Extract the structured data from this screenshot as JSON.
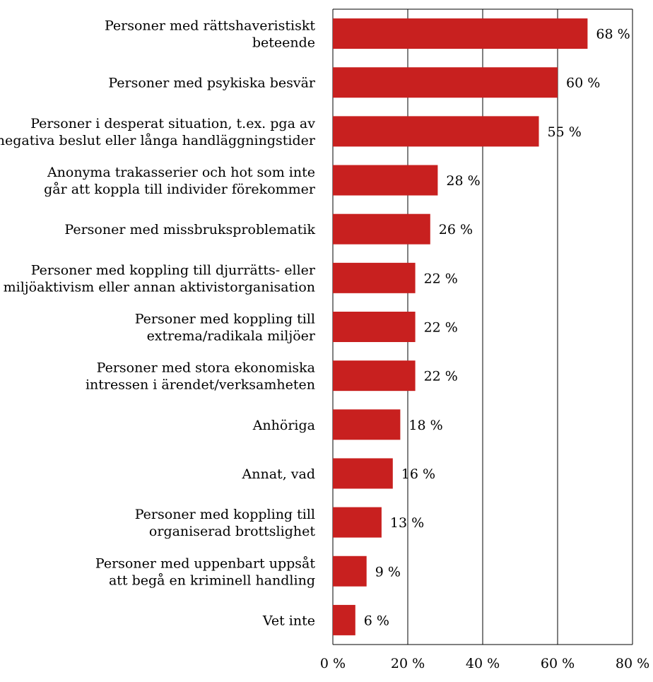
{
  "chart_data": {
    "type": "bar",
    "orientation": "horizontal",
    "categories": [
      [
        "Personer med rättshaveristiskt",
        "beteende"
      ],
      [
        "Personer med psykiska besvär"
      ],
      [
        "Personer i desperat situation, t.ex. pga av",
        "negativa beslut eller långa handläggningstider"
      ],
      [
        "Anonyma trakasserier och hot som inte",
        "går att koppla till individer förekommer"
      ],
      [
        "Personer med missbruksproblematik"
      ],
      [
        "Personer med koppling till djurrätts- eller",
        "miljöaktivism eller annan aktivistorganisation"
      ],
      [
        "Personer med koppling till",
        "extrema/radikala miljöer"
      ],
      [
        "Personer med stora ekonomiska",
        "intressen i ärendet/verksamheten"
      ],
      [
        "Anhöriga"
      ],
      [
        "Annat, vad"
      ],
      [
        "Personer med koppling till",
        "organiserad brottslighet"
      ],
      [
        "Personer med uppenbart uppsåt",
        "att begå en kriminell handling"
      ],
      [
        "Vet inte"
      ]
    ],
    "values": [
      68,
      60,
      55,
      28,
      26,
      22,
      22,
      22,
      18,
      16,
      13,
      9,
      6
    ],
    "value_labels": [
      "68 %",
      "60 %",
      "55 %",
      "28 %",
      "26 %",
      "22 %",
      "22 %",
      "22 %",
      "18 %",
      "16 %",
      "13 %",
      "9 %",
      "6 %"
    ],
    "xlim": [
      0,
      80
    ],
    "xticks": [
      0,
      20,
      40,
      60,
      80
    ],
    "xtick_labels": [
      "0 %",
      "20 %",
      "40 %",
      "60 %",
      "80 %"
    ],
    "grid": true,
    "bar_color": "#c8201f",
    "title": "",
    "xlabel": "",
    "ylabel": ""
  }
}
